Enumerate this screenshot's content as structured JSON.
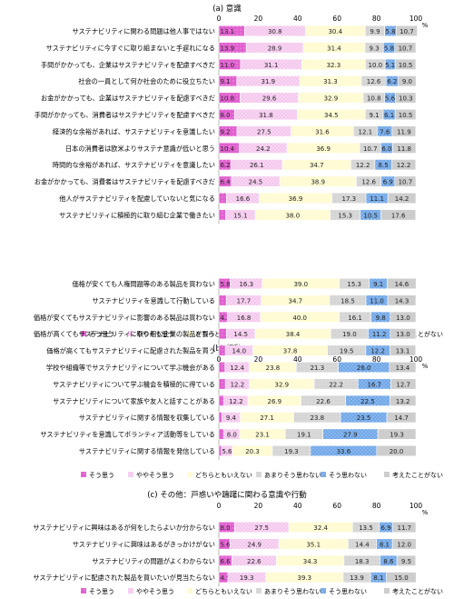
{
  "categories_legend": [
    "そう思う",
    "ややそう思う",
    "どちらともいえない",
    "あまりそう思わない",
    "そう思わない",
    "考えたことがない"
  ],
  "colors": [
    "#e060d0",
    "#f4c8ee",
    "#fffbd0",
    "#d2d2d2",
    "#6fa6e6",
    "#cfcfcf"
  ],
  "axis_ticks": [
    "0",
    "20",
    "40",
    "60",
    "80",
    "100"
  ],
  "axis_unit": "%",
  "chart_data": [
    {
      "type": "bar",
      "title": "(a) 意識",
      "orientation": "horizontal-stacked",
      "xlim": [
        0,
        100
      ],
      "categories": [
        "サステナビリティに関わる問題は他人事ではない",
        "サステナビリティに今すぐに取り組まないと手遅れになる",
        "手間がかかっても、企業はサステナビリティを配慮すべきだ",
        "社会の一員として何か社会のために役立ちたい",
        "お金がかかっても、企業はサステナビリティを配慮すべきだ",
        "手間がかかっても、消費者はサステナビリティを配慮すべきだ",
        "経済的な余裕があれば、サステナビリティを意識したい",
        "日本の消費者は欧米よりサステナ意識が低いと思う",
        "時間的な余裕があれば、サステナビリティを意識したい",
        "お金がかかっても、消費者はサステナビリティを配慮すべきだ",
        "他人がサステナビリティを配慮していないと気になる",
        "サステナビリティに積極的に取り組む企業で働きたい"
      ],
      "values": [
        [
          13.1,
          30.8,
          30.4,
          9.9,
          5.8,
          10.7
        ],
        [
          13.9,
          28.9,
          31.4,
          9.3,
          5.8,
          10.7
        ],
        [
          11.0,
          31.1,
          32.3,
          10.0,
          5.1,
          10.5
        ],
        [
          9.1,
          31.9,
          31.3,
          12.6,
          6.2,
          9.0
        ],
        [
          10.8,
          29.6,
          32.9,
          10.8,
          5.6,
          10.3
        ],
        [
          8.0,
          31.8,
          34.5,
          9.1,
          6.1,
          10.5
        ],
        [
          9.2,
          27.5,
          31.6,
          12.1,
          7.6,
          11.9
        ],
        [
          10.4,
          24.2,
          36.9,
          10.7,
          6.0,
          11.8
        ],
        [
          6.2,
          26.1,
          34.7,
          12.2,
          8.5,
          12.2
        ],
        [
          6.4,
          24.5,
          38.9,
          12.6,
          6.9,
          10.7
        ],
        [
          3.9,
          16.6,
          36.9,
          17.3,
          11.1,
          14.2
        ],
        [
          3.4,
          15.1,
          38.0,
          15.3,
          10.5,
          17.6
        ]
      ]
    },
    {
      "type": "bar",
      "title": "(b) 行動",
      "orientation": "horizontal-stacked",
      "xlim": [
        0,
        100
      ],
      "categories": [
        "価格が安くても人権問題等のある製品を買わない",
        "サステナビリティを意識して行動している",
        "価格が安くてもサステナビリティに影響のある製品は買わない",
        "価格が高くてもサステナビリティに取り組む企業の製品を買う",
        "価格が高くてもサステナビリティに配慮された製品を買う",
        "学校や組織等でサステナビリティについて学ぶ機会がある",
        "サステナビリティについて学ぶ機会を積極的に得ている",
        "サステナビリティについて家族や友人と話すことがある",
        "サステナビリティに関する情報を収集している",
        "サステナビリティを意識してボランティア活動等をしている",
        "サステナビリティに関する情報を発信している"
      ],
      "values": [
        [
          5.8,
          16.3,
          39.0,
          15.3,
          9.1,
          14.6
        ],
        [
          3.8,
          17.7,
          34.7,
          18.5,
          11.0,
          14.3
        ],
        [
          4.3,
          16.8,
          40.0,
          16.1,
          9.8,
          13.0
        ],
        [
          3.9,
          14.5,
          38.4,
          19.0,
          11.2,
          13.0
        ],
        [
          3.3,
          14.0,
          37.8,
          19.5,
          12.2,
          13.1
        ],
        [
          3.1,
          12.4,
          23.8,
          21.3,
          26.0,
          13.4
        ],
        [
          3.3,
          12.2,
          32.9,
          22.2,
          16.7,
          12.7
        ],
        [
          2.6,
          12.2,
          26.9,
          22.6,
          22.5,
          13.2
        ],
        [
          1.5,
          9.4,
          27.1,
          23.8,
          23.5,
          14.7
        ],
        [
          2.6,
          8.0,
          23.1,
          19.1,
          27.9,
          19.3
        ],
        [
          1.3,
          5.6,
          20.3,
          19.3,
          33.6,
          20.0
        ]
      ],
      "labels": [
        [
          "5.8",
          "16.3",
          "39.0",
          "15.3",
          "9.1",
          "14.6"
        ],
        [
          "3.8",
          "17.7",
          "34.7",
          "18.5",
          "11.0",
          "14.3"
        ],
        [
          "4.3",
          "16.8",
          "40.0",
          "16.1",
          "9.8",
          "13.0"
        ],
        [
          "3.9",
          "14.5",
          "38.4",
          "19.0",
          "11.2",
          "13.0"
        ],
        [
          "3.3",
          "14.0",
          "37.8",
          "19.5",
          "12.2",
          "13.1"
        ],
        [
          "3.1",
          "12.4",
          "23.8",
          "21.3",
          "26.0",
          "13.4"
        ],
        [
          "3.3",
          "12.2",
          "32.9",
          "22.2",
          "16.7",
          "12.7"
        ],
        [
          "2.6",
          "12.2",
          "26.9",
          "22.6",
          "22.5",
          "13.2"
        ],
        [
          "1.5",
          "9.4",
          "27.1",
          "23.8",
          "23.5",
          "14.7"
        ],
        [
          "2.6",
          "8.0",
          "23.1",
          "19.1",
          "27.9",
          "19.3"
        ],
        [
          "1.3",
          "5.6",
          "20.3",
          "19.3",
          "33.6",
          "20.0"
        ]
      ]
    },
    {
      "type": "bar",
      "title": "(c) その他：戸惑いや躊躇に関わる意識や行動",
      "orientation": "horizontal-stacked",
      "xlim": [
        0,
        100
      ],
      "categories": [
        "サステナビリティに興味はあるが何をしたらよいか分からない",
        "サステナビリティに興味はあるがきっかけがない",
        "サステナビリティの問題がよくわからない",
        "サステナビリティに配慮された製品を買いたいが見当たらない"
      ],
      "values": [
        [
          8.0,
          27.5,
          32.4,
          13.5,
          6.9,
          11.7
        ],
        [
          5.6,
          24.9,
          35.1,
          14.4,
          8.1,
          12.0
        ],
        [
          6.6,
          22.6,
          34.3,
          18.3,
          8.6,
          9.5
        ],
        [
          4.5,
          19.3,
          39.3,
          13.9,
          8.1,
          15.0
        ]
      ]
    }
  ]
}
